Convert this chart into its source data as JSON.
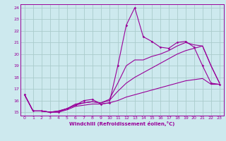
{
  "xlabel": "Windchill (Refroidissement éolien,°C)",
  "background_color": "#cde9ee",
  "grid_color": "#aacccc",
  "line_color": "#990099",
  "xlim": [
    -0.5,
    23.5
  ],
  "ylim": [
    14.7,
    24.3
  ],
  "yticks": [
    15,
    16,
    17,
    18,
    19,
    20,
    21,
    22,
    23,
    24
  ],
  "xticks": [
    0,
    1,
    2,
    3,
    4,
    5,
    6,
    7,
    8,
    9,
    10,
    11,
    12,
    13,
    14,
    15,
    16,
    17,
    18,
    19,
    20,
    21,
    22,
    23
  ],
  "hours": [
    0,
    1,
    2,
    3,
    4,
    5,
    6,
    7,
    8,
    9,
    10,
    11,
    12,
    13,
    14,
    15,
    16,
    17,
    18,
    19,
    20,
    21,
    22,
    23
  ],
  "line1": [
    16.5,
    15.1,
    15.1,
    15.0,
    15.0,
    15.3,
    15.6,
    16.0,
    16.1,
    15.7,
    15.8,
    19.0,
    22.5,
    24.0,
    21.5,
    21.1,
    20.6,
    20.5,
    21.0,
    21.1,
    20.6,
    19.0,
    17.5,
    17.4
  ],
  "line2": [
    16.5,
    15.1,
    15.1,
    15.0,
    15.1,
    15.3,
    15.7,
    15.8,
    15.9,
    15.8,
    16.1,
    17.5,
    19.0,
    19.5,
    19.5,
    19.8,
    20.0,
    20.3,
    20.7,
    21.0,
    20.8,
    20.7,
    19.0,
    17.5
  ],
  "line3": [
    16.5,
    15.1,
    15.1,
    15.0,
    15.1,
    15.3,
    15.6,
    15.8,
    15.9,
    15.8,
    16.0,
    16.8,
    17.5,
    18.0,
    18.4,
    18.8,
    19.2,
    19.6,
    20.0,
    20.3,
    20.5,
    20.7,
    19.0,
    17.5
  ],
  "line4": [
    16.5,
    15.1,
    15.1,
    15.0,
    15.0,
    15.2,
    15.5,
    15.6,
    15.7,
    15.7,
    15.8,
    16.0,
    16.3,
    16.5,
    16.7,
    16.9,
    17.1,
    17.3,
    17.5,
    17.7,
    17.8,
    17.9,
    17.4,
    17.4
  ]
}
